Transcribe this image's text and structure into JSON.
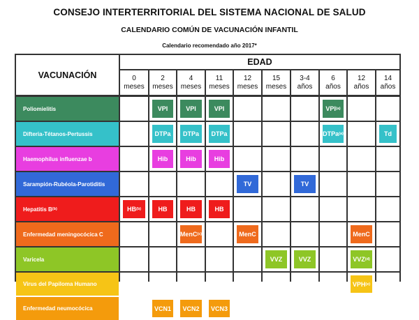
{
  "title": "CONSEJO INTERTERRITORIAL DEL SISTEMA NACIONAL DE SALUD",
  "subtitle": "CALENDARIO COMÚN DE VACUNACIÓN INFANTIL",
  "note": "Calendario recomendado año 2017*",
  "vaccine_header": "VACUNACIÓN",
  "age_header": "EDAD",
  "ages": [
    {
      "num": "0",
      "unit": "meses"
    },
    {
      "num": "2",
      "unit": "meses"
    },
    {
      "num": "4",
      "unit": "meses"
    },
    {
      "num": "11",
      "unit": "meses"
    },
    {
      "num": "12",
      "unit": "meses"
    },
    {
      "num": "15",
      "unit": "meses"
    },
    {
      "num": "3-4",
      "unit": "años"
    },
    {
      "num": "6",
      "unit": "años"
    },
    {
      "num": "12",
      "unit": "años"
    },
    {
      "num": "14",
      "unit": "años"
    }
  ],
  "rows": [
    {
      "name": "Poliomielitis",
      "name_sup": "",
      "color": "#3c8a5e",
      "cells": [
        {
          "col": 1,
          "text": "VPI",
          "sup": ""
        },
        {
          "col": 2,
          "text": "VPI",
          "sup": ""
        },
        {
          "col": 3,
          "text": "VPI",
          "sup": ""
        },
        {
          "col": 7,
          "text": "VPI",
          "sup": "(a)"
        }
      ]
    },
    {
      "name": "Difteria-Tétanos-Pertussis",
      "name_sup": "",
      "color": "#35c1c9",
      "cells": [
        {
          "col": 1,
          "text": "DTPa",
          "sup": ""
        },
        {
          "col": 2,
          "text": "DTPa",
          "sup": ""
        },
        {
          "col": 3,
          "text": "DTPa",
          "sup": ""
        },
        {
          "col": 7,
          "text": "DTPa",
          "sup": "(a)"
        },
        {
          "col": 9,
          "text": "Td",
          "sup": ""
        }
      ]
    },
    {
      "name": "Haemophilus influenzae b",
      "name_sup": "",
      "color": "#e83ee0",
      "cells": [
        {
          "col": 1,
          "text": "Hib",
          "sup": ""
        },
        {
          "col": 2,
          "text": "Hib",
          "sup": ""
        },
        {
          "col": 3,
          "text": "Hib",
          "sup": ""
        }
      ]
    },
    {
      "name": "Sarampión-Rubéola-Parotiditis",
      "name_sup": "",
      "color": "#3169d8",
      "cells": [
        {
          "col": 4,
          "text": "TV",
          "sup": ""
        },
        {
          "col": 6,
          "text": "TV",
          "sup": ""
        }
      ]
    },
    {
      "name": "Hepatitis B",
      "name_sup": "(b)",
      "color": "#ef1c1c",
      "cells": [
        {
          "col": 0,
          "text": "HB",
          "sup": "(b)"
        },
        {
          "col": 1,
          "text": "HB",
          "sup": ""
        },
        {
          "col": 2,
          "text": "HB",
          "sup": ""
        },
        {
          "col": 3,
          "text": "HB",
          "sup": ""
        }
      ]
    },
    {
      "name": "Enfermedad meningocócica C",
      "name_sup": "",
      "color": "#ef6a1c",
      "cells": [
        {
          "col": 2,
          "text": "MenC",
          "sup": "(c)"
        },
        {
          "col": 4,
          "text": "MenC",
          "sup": ""
        },
        {
          "col": 8,
          "text": "MenC",
          "sup": ""
        }
      ]
    },
    {
      "name": "Varicela",
      "name_sup": "",
      "color": "#8ec626",
      "cells": [
        {
          "col": 5,
          "text": "VVZ",
          "sup": ""
        },
        {
          "col": 6,
          "text": "VVZ",
          "sup": ""
        },
        {
          "col": 8,
          "text": "VVZ",
          "sup": "(d)"
        }
      ]
    },
    {
      "name": "Virus del Papiloma Humano",
      "name_sup": "",
      "color": "#f6c416",
      "cells": [
        {
          "col": 8,
          "text": "VPH",
          "sup": "(e)"
        }
      ]
    },
    {
      "name": "Enfermedad neumocócica",
      "name_sup": "",
      "color": "#f49b0c",
      "cells": [
        {
          "col": 1,
          "text": "VCN1",
          "sup": ""
        },
        {
          "col": 2,
          "text": "VCN2",
          "sup": ""
        },
        {
          "col": 3,
          "text": "VCN3",
          "sup": ""
        }
      ]
    }
  ]
}
